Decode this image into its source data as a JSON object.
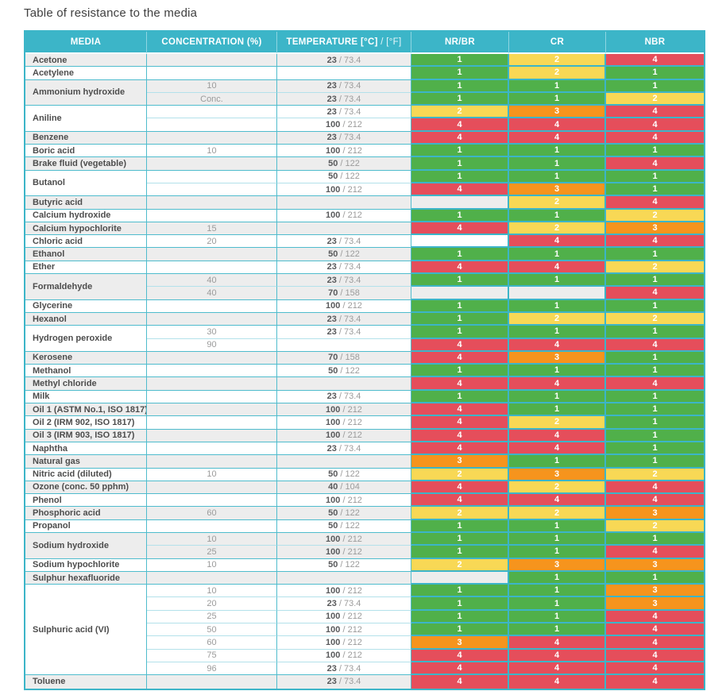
{
  "title": "Table of resistance to the media",
  "columns": {
    "media": "MEDIA",
    "concentration": "CONCENTRATION (%)",
    "temperature_bold": "TEMPERATURE [°C]",
    "temperature_light": " / [°F]",
    "nr_br": "NR/BR",
    "cr": "CR",
    "nbr": "NBR"
  },
  "theme": {
    "header_bg": "#3cb5c8",
    "row_alt_bg": "#ededed",
    "row_bg": "#ffffff",
    "border": "#3cb5c8"
  },
  "rating_colors": {
    "1": "#50b04a",
    "2": "#f8d855",
    "3": "#f6941d",
    "4": "#e54e5b"
  },
  "temp_separator": " / ",
  "groups": [
    {
      "media": "Acetone",
      "rows": [
        {
          "conc": "",
          "temp_c": "23",
          "temp_f": "73.4",
          "ratings": [
            1,
            2,
            4
          ]
        }
      ]
    },
    {
      "media": "Acetylene",
      "rows": [
        {
          "conc": "",
          "temp_c": "",
          "temp_f": "",
          "ratings": [
            1,
            2,
            1
          ]
        }
      ]
    },
    {
      "media": "Ammonium hydroxide",
      "rows": [
        {
          "conc": "10",
          "temp_c": "23",
          "temp_f": "73.4",
          "ratings": [
            1,
            1,
            1
          ]
        },
        {
          "conc": "Conc.",
          "temp_c": "23",
          "temp_f": "73.4",
          "ratings": [
            1,
            1,
            2
          ]
        }
      ]
    },
    {
      "media": "Aniline",
      "rows": [
        {
          "conc": "",
          "temp_c": "23",
          "temp_f": "73.4",
          "ratings": [
            2,
            3,
            4
          ]
        },
        {
          "conc": "",
          "temp_c": "100",
          "temp_f": "212",
          "ratings": [
            4,
            4,
            4
          ]
        }
      ]
    },
    {
      "media": "Benzene",
      "rows": [
        {
          "conc": "",
          "temp_c": "23",
          "temp_f": "73.4",
          "ratings": [
            4,
            4,
            4
          ]
        }
      ]
    },
    {
      "media": "Boric acid",
      "rows": [
        {
          "conc": "10",
          "temp_c": "100",
          "temp_f": "212",
          "ratings": [
            1,
            1,
            1
          ]
        }
      ]
    },
    {
      "media": "Brake fluid (vegetable)",
      "rows": [
        {
          "conc": "",
          "temp_c": "50",
          "temp_f": "122",
          "ratings": [
            1,
            1,
            4
          ]
        }
      ]
    },
    {
      "media": "Butanol",
      "rows": [
        {
          "conc": "",
          "temp_c": "50",
          "temp_f": "122",
          "ratings": [
            1,
            1,
            1
          ]
        },
        {
          "conc": "",
          "temp_c": "100",
          "temp_f": "212",
          "ratings": [
            4,
            3,
            1
          ]
        }
      ]
    },
    {
      "media": "Butyric acid",
      "rows": [
        {
          "conc": "",
          "temp_c": "",
          "temp_f": "",
          "ratings": [
            null,
            2,
            4
          ]
        }
      ]
    },
    {
      "media": "Calcium hydroxide",
      "rows": [
        {
          "conc": "",
          "temp_c": "100",
          "temp_f": "212",
          "ratings": [
            1,
            1,
            2
          ]
        }
      ]
    },
    {
      "media": "Calcium hypochlorite",
      "rows": [
        {
          "conc": "15",
          "temp_c": "",
          "temp_f": "",
          "ratings": [
            4,
            2,
            3
          ]
        }
      ]
    },
    {
      "media": "Chloric acid",
      "rows": [
        {
          "conc": "20",
          "temp_c": "23",
          "temp_f": "73.4",
          "ratings": [
            null,
            4,
            4
          ]
        }
      ]
    },
    {
      "media": "Ethanol",
      "rows": [
        {
          "conc": "",
          "temp_c": "50",
          "temp_f": "122",
          "ratings": [
            1,
            1,
            1
          ]
        }
      ]
    },
    {
      "media": "Ether",
      "rows": [
        {
          "conc": "",
          "temp_c": "23",
          "temp_f": "73.4",
          "ratings": [
            4,
            4,
            2
          ]
        }
      ]
    },
    {
      "media": "Formaldehyde",
      "rows": [
        {
          "conc": "40",
          "temp_c": "23",
          "temp_f": "73.4",
          "ratings": [
            1,
            1,
            1
          ]
        },
        {
          "conc": "40",
          "temp_c": "70",
          "temp_f": "158",
          "ratings": [
            null,
            null,
            4
          ]
        }
      ]
    },
    {
      "media": "Glycerine",
      "rows": [
        {
          "conc": "",
          "temp_c": "100",
          "temp_f": "212",
          "ratings": [
            1,
            1,
            1
          ]
        }
      ]
    },
    {
      "media": "Hexanol",
      "rows": [
        {
          "conc": "",
          "temp_c": "23",
          "temp_f": "73.4",
          "ratings": [
            1,
            2,
            2
          ]
        }
      ]
    },
    {
      "media": "Hydrogen peroxide",
      "rows": [
        {
          "conc": "30",
          "temp_c": "23",
          "temp_f": "73.4",
          "ratings": [
            1,
            1,
            1
          ]
        },
        {
          "conc": "90",
          "temp_c": "",
          "temp_f": "",
          "ratings": [
            4,
            4,
            4
          ]
        }
      ]
    },
    {
      "media": "Kerosene",
      "rows": [
        {
          "conc": "",
          "temp_c": "70",
          "temp_f": "158",
          "ratings": [
            4,
            3,
            1
          ]
        }
      ]
    },
    {
      "media": "Methanol",
      "rows": [
        {
          "conc": "",
          "temp_c": "50",
          "temp_f": "122",
          "ratings": [
            1,
            1,
            1
          ]
        }
      ]
    },
    {
      "media": "Methyl chloride",
      "rows": [
        {
          "conc": "",
          "temp_c": "",
          "temp_f": "",
          "ratings": [
            4,
            4,
            4
          ]
        }
      ]
    },
    {
      "media": "Milk",
      "rows": [
        {
          "conc": "",
          "temp_c": "23",
          "temp_f": "73.4",
          "ratings": [
            1,
            1,
            1
          ]
        }
      ]
    },
    {
      "media": "Oil 1 (ASTM No.1, ISO 1817)",
      "rows": [
        {
          "conc": "",
          "temp_c": "100",
          "temp_f": "212",
          "ratings": [
            4,
            1,
            1
          ]
        }
      ]
    },
    {
      "media": "Oil 2 (IRM 902, ISO 1817)",
      "rows": [
        {
          "conc": "",
          "temp_c": "100",
          "temp_f": "212",
          "ratings": [
            4,
            2,
            1
          ]
        }
      ]
    },
    {
      "media": "Oil 3 (IRM 903, ISO 1817)",
      "rows": [
        {
          "conc": "",
          "temp_c": "100",
          "temp_f": "212",
          "ratings": [
            4,
            4,
            1
          ]
        }
      ]
    },
    {
      "media": "Naphtha",
      "rows": [
        {
          "conc": "",
          "temp_c": "23",
          "temp_f": "73.4",
          "ratings": [
            4,
            4,
            1
          ]
        }
      ]
    },
    {
      "media": "Natural gas",
      "rows": [
        {
          "conc": "",
          "temp_c": "",
          "temp_f": "",
          "ratings": [
            3,
            1,
            1
          ]
        }
      ]
    },
    {
      "media": "Nitric acid (diluted)",
      "rows": [
        {
          "conc": "10",
          "temp_c": "50",
          "temp_f": "122",
          "ratings": [
            2,
            3,
            2
          ]
        }
      ]
    },
    {
      "media": "Ozone (conc. 50 pphm)",
      "rows": [
        {
          "conc": "",
          "temp_c": "40",
          "temp_f": "104",
          "ratings": [
            4,
            2,
            4
          ]
        }
      ]
    },
    {
      "media": "Phenol",
      "rows": [
        {
          "conc": "",
          "temp_c": "100",
          "temp_f": "212",
          "ratings": [
            4,
            4,
            4
          ]
        }
      ]
    },
    {
      "media": "Phosphoric acid",
      "rows": [
        {
          "conc": "60",
          "temp_c": "50",
          "temp_f": "122",
          "ratings": [
            2,
            2,
            3
          ]
        }
      ]
    },
    {
      "media": "Propanol",
      "rows": [
        {
          "conc": "",
          "temp_c": "50",
          "temp_f": "122",
          "ratings": [
            1,
            1,
            2
          ]
        }
      ]
    },
    {
      "media": "Sodium hydroxide",
      "rows": [
        {
          "conc": "10",
          "temp_c": "100",
          "temp_f": "212",
          "ratings": [
            1,
            1,
            1
          ]
        },
        {
          "conc": "25",
          "temp_c": "100",
          "temp_f": "212",
          "ratings": [
            1,
            1,
            4
          ]
        }
      ]
    },
    {
      "media": "Sodium hypochlorite",
      "rows": [
        {
          "conc": "10",
          "temp_c": "50",
          "temp_f": "122",
          "ratings": [
            2,
            3,
            3
          ]
        }
      ]
    },
    {
      "media": "Sulphur hexafluoride",
      "rows": [
        {
          "conc": "",
          "temp_c": "",
          "temp_f": "",
          "ratings": [
            null,
            1,
            1
          ]
        }
      ]
    },
    {
      "media": "Sulphuric acid (VI)",
      "rows": [
        {
          "conc": "10",
          "temp_c": "100",
          "temp_f": "212",
          "ratings": [
            1,
            1,
            3
          ]
        },
        {
          "conc": "20",
          "temp_c": "23",
          "temp_f": "73.4",
          "ratings": [
            1,
            1,
            3
          ]
        },
        {
          "conc": "25",
          "temp_c": "100",
          "temp_f": "212",
          "ratings": [
            1,
            1,
            4
          ]
        },
        {
          "conc": "50",
          "temp_c": "100",
          "temp_f": "212",
          "ratings": [
            1,
            1,
            4
          ]
        },
        {
          "conc": "60",
          "temp_c": "100",
          "temp_f": "212",
          "ratings": [
            3,
            4,
            4
          ]
        },
        {
          "conc": "75",
          "temp_c": "100",
          "temp_f": "212",
          "ratings": [
            4,
            4,
            4
          ]
        },
        {
          "conc": "96",
          "temp_c": "23",
          "temp_f": "73.4",
          "ratings": [
            4,
            4,
            4
          ]
        }
      ]
    },
    {
      "media": "Toluene",
      "rows": [
        {
          "conc": "",
          "temp_c": "23",
          "temp_f": "73.4",
          "ratings": [
            4,
            4,
            4
          ]
        }
      ]
    }
  ]
}
